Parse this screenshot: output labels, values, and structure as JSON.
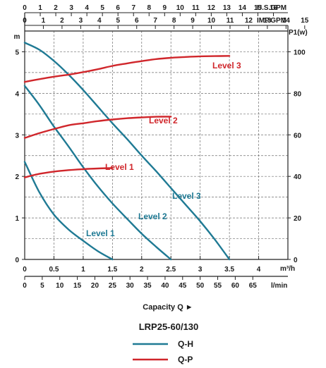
{
  "chart_data": {
    "type": "line",
    "title": "LRP25-60/130",
    "xlabel": "Capacity Q ►",
    "x_axes": [
      {
        "unit": "U.S.GPM",
        "ticks": [
          0,
          1,
          2,
          3,
          4,
          5,
          6,
          7,
          8,
          9,
          10,
          11,
          12,
          13,
          14,
          15,
          16
        ]
      },
      {
        "unit": "IMP.GPM",
        "ticks": [
          0,
          1,
          2,
          3,
          4,
          5,
          6,
          7,
          8,
          9,
          10,
          11,
          12,
          13,
          14,
          15
        ]
      },
      {
        "unit": "m³/h",
        "ticks": [
          "0",
          "0.5",
          "1",
          "1.5",
          "2",
          "2.5",
          "3",
          "3.5",
          "4"
        ],
        "range": [
          0,
          4.5
        ]
      },
      {
        "unit": "l/min",
        "ticks": [
          0,
          5,
          10,
          15,
          20,
          25,
          30,
          35,
          40,
          45,
          50,
          55,
          60,
          65
        ]
      }
    ],
    "y_left": {
      "label": "m",
      "ticks": [
        0,
        1,
        2,
        3,
        4,
        5
      ],
      "range": [
        0,
        5.5
      ]
    },
    "y_right": {
      "label": "P1(w)",
      "ticks": [
        0,
        20,
        40,
        60,
        80,
        100
      ],
      "range": [
        0,
        110
      ]
    },
    "grid": true,
    "series": [
      {
        "name": "Level 1",
        "curve": "Q-H",
        "axis": "left",
        "color": "#1f7a94",
        "x": [
          0,
          0.25,
          0.5,
          0.75,
          1.0,
          1.25,
          1.5
        ],
        "y": [
          2.35,
          1.62,
          1.08,
          0.72,
          0.45,
          0.2,
          0.0
        ]
      },
      {
        "name": "Level 2",
        "curve": "Q-H",
        "axis": "left",
        "color": "#1f7a94",
        "x": [
          0,
          0.25,
          0.5,
          0.75,
          1.0,
          1.25,
          1.5,
          1.75,
          2.0,
          2.25,
          2.5
        ],
        "y": [
          4.18,
          3.72,
          3.2,
          2.72,
          2.22,
          1.76,
          1.35,
          0.98,
          0.62,
          0.3,
          0.0
        ]
      },
      {
        "name": "Level 3",
        "curve": "Q-H",
        "axis": "left",
        "color": "#1f7a94",
        "x": [
          0,
          0.25,
          0.5,
          0.75,
          1.0,
          1.25,
          1.5,
          1.75,
          2.0,
          2.25,
          2.5,
          2.75,
          3.0,
          3.25,
          3.5
        ],
        "y": [
          5.22,
          5.05,
          4.78,
          4.45,
          4.08,
          3.68,
          3.28,
          2.9,
          2.5,
          2.12,
          1.72,
          1.32,
          0.92,
          0.48,
          0.0
        ]
      },
      {
        "name": "Level 1",
        "curve": "Q-P",
        "axis": "right",
        "color": "#d0262b",
        "x": [
          0,
          0.25,
          0.5,
          0.75,
          1.0,
          1.25,
          1.5
        ],
        "y": [
          39.5,
          41.2,
          42.3,
          43.0,
          43.5,
          43.8,
          44.0
        ]
      },
      {
        "name": "Level 2",
        "curve": "Q-P",
        "axis": "right",
        "color": "#d0262b",
        "x": [
          0,
          0.25,
          0.5,
          0.75,
          1.0,
          1.25,
          1.5,
          1.75,
          2.0,
          2.25,
          2.5
        ],
        "y": [
          58.5,
          60.8,
          62.8,
          64.6,
          65.6,
          66.6,
          67.4,
          68.0,
          68.4,
          68.7,
          68.8
        ]
      },
      {
        "name": "Level 3",
        "curve": "Q-P",
        "axis": "right",
        "color": "#d0262b",
        "x": [
          0,
          0.25,
          0.5,
          0.75,
          1.0,
          1.25,
          1.5,
          1.75,
          2.0,
          2.25,
          2.5,
          2.75,
          3.0,
          3.25,
          3.5
        ],
        "y": [
          85.5,
          86.8,
          88.0,
          89.0,
          90.2,
          91.6,
          93.2,
          94.4,
          95.5,
          96.5,
          97.1,
          97.5,
          97.8,
          97.9,
          98.0
        ]
      }
    ],
    "curve_labels": [
      {
        "text": "Level 3",
        "curve": "Q-P",
        "color": "#d0262b"
      },
      {
        "text": "Level 2",
        "curve": "Q-P",
        "color": "#d0262b"
      },
      {
        "text": "Level 1",
        "curve": "Q-P",
        "color": "#d0262b"
      },
      {
        "text": "Level 3",
        "curve": "Q-H",
        "color": "#1f7a94"
      },
      {
        "text": "Level 2",
        "curve": "Q-H",
        "color": "#1f7a94"
      },
      {
        "text": "Level 1",
        "curve": "Q-H",
        "color": "#1f7a94"
      }
    ],
    "legend": {
      "placement": "bottom",
      "entries": [
        {
          "label": "Q-H",
          "color": "#1f7a94"
        },
        {
          "label": "Q-P",
          "color": "#d0262b"
        }
      ]
    }
  }
}
